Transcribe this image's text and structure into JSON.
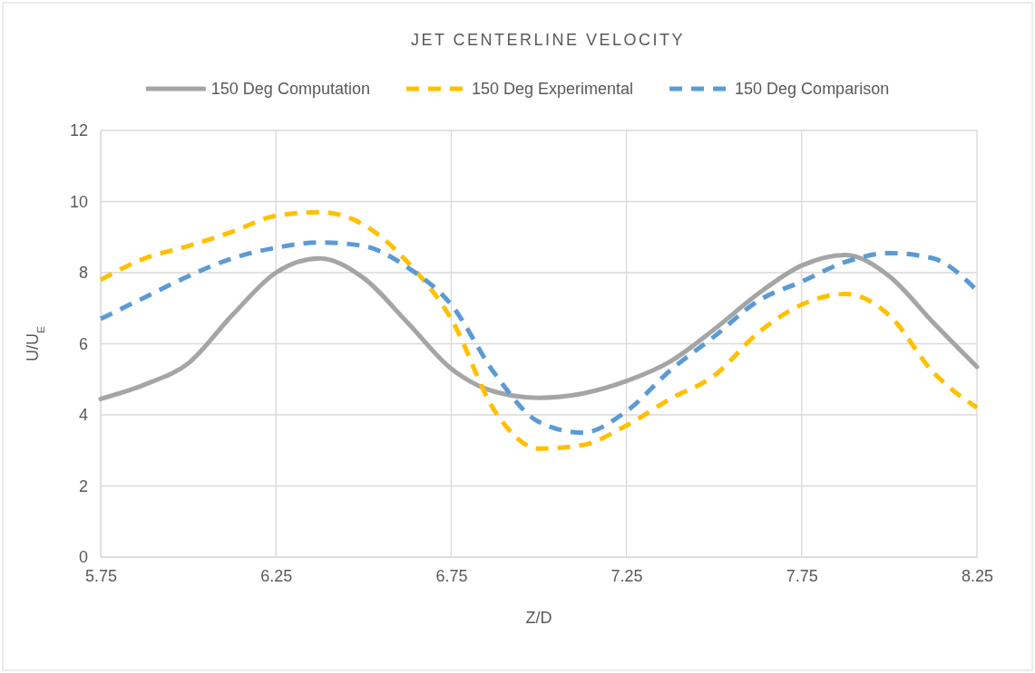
{
  "chart_data": {
    "type": "line",
    "title": "JET CENTERLINE VELOCITY",
    "xlabel": "Z/D",
    "ylabel": "U/U$_{E}$",
    "x": [
      5.75,
      5.875,
      6.0,
      6.125,
      6.25,
      6.375,
      6.5,
      6.625,
      6.75,
      6.875,
      7.0,
      7.125,
      7.25,
      7.375,
      7.5,
      7.625,
      7.75,
      7.875,
      8.0,
      8.125,
      8.25
    ],
    "series": [
      {
        "name": "150 Deg Computation",
        "color": "#a5a5a5",
        "line_style": "solid",
        "values": [
          4.45,
          4.85,
          5.45,
          6.8,
          8.0,
          8.4,
          7.85,
          6.6,
          5.3,
          4.65,
          4.48,
          4.6,
          4.95,
          5.5,
          6.4,
          7.4,
          8.2,
          8.5,
          7.9,
          6.6,
          5.35
        ]
      },
      {
        "name": "150 Deg Experimental",
        "color": "#ffc000",
        "line_style": "dashed",
        "values": [
          7.8,
          8.4,
          8.75,
          9.15,
          9.6,
          9.7,
          9.35,
          8.3,
          6.7,
          4.1,
          3.05,
          3.15,
          3.7,
          4.45,
          5.1,
          6.3,
          7.1,
          7.4,
          6.8,
          5.2,
          4.2
        ]
      },
      {
        "name": "150 Deg Comparison",
        "color": "#5b9bd5",
        "line_style": "dashed",
        "values": [
          6.7,
          7.3,
          7.9,
          8.4,
          8.7,
          8.85,
          8.75,
          8.15,
          7.1,
          5.15,
          3.8,
          3.5,
          4.1,
          5.25,
          6.2,
          7.2,
          7.75,
          8.3,
          8.55,
          8.4,
          7.5
        ]
      }
    ],
    "xlim": [
      5.75,
      8.25
    ],
    "xticks": [
      5.75,
      6.25,
      6.75,
      7.25,
      7.75,
      8.25
    ],
    "ylim": [
      0,
      12
    ],
    "yticks": [
      0,
      2,
      4,
      6,
      8,
      10,
      12
    ],
    "grid": true,
    "legend": "top",
    "marker": "none"
  }
}
